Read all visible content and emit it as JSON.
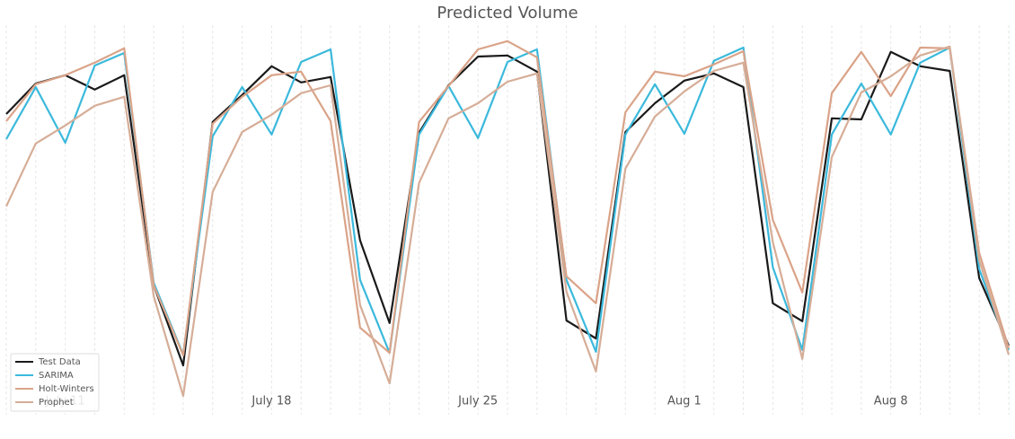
{
  "chart_data": {
    "type": "line",
    "title": "Predicted Volume",
    "categories": [
      null,
      null,
      "July 11",
      null,
      null,
      null,
      null,
      null,
      null,
      "July 18",
      null,
      null,
      null,
      null,
      null,
      null,
      "July 25",
      null,
      null,
      null,
      null,
      null,
      null,
      "Aug 1",
      null,
      null,
      null,
      null,
      null,
      null,
      "Aug 8",
      null,
      null,
      null,
      null
    ],
    "ylim": [
      0,
      110
    ],
    "grid": true,
    "legend": "lower-left",
    "series": [
      {
        "name": "Test Data",
        "color": "#1a1a1a",
        "values": [
          84.5,
          93,
          95.3,
          91.3,
          95.3,
          36.8,
          14.5,
          82.3,
          89.8,
          97.8,
          93.3,
          94.8,
          49.3,
          26.3,
          79.3,
          92.5,
          100.5,
          100.8,
          96.3,
          27,
          22,
          79.5,
          87.5,
          93.8,
          95.8,
          92,
          31.8,
          26.8,
          83.3,
          83,
          101.8,
          97.8,
          96.5,
          38.8,
          20
        ]
      },
      {
        "name": "SARIMA",
        "color": "#3bb9dc",
        "values": [
          77.5,
          92,
          76.5,
          98,
          101.5,
          37.5,
          17.5,
          78.3,
          92,
          78.8,
          99,
          102.5,
          38.3,
          18,
          78.8,
          92.3,
          77.8,
          99,
          102.5,
          38.3,
          18.3,
          78.8,
          92.8,
          79,
          99.3,
          103,
          41.8,
          18.8,
          78.8,
          93,
          78.8,
          98.8,
          103,
          41.3,
          18.8
        ]
      },
      {
        "name": "Holt-Winters",
        "color": "#daa388",
        "values": [
          82.5,
          92.8,
          95.3,
          98.8,
          102.8,
          36.8,
          17.3,
          81.8,
          89.3,
          95.3,
          96.3,
          82.5,
          25,
          18,
          82.3,
          92.3,
          102.5,
          104.8,
          100.3,
          39.3,
          31.8,
          85,
          96.3,
          95,
          98.3,
          102,
          55,
          34.8,
          90.3,
          101.8,
          89.5,
          103,
          102.8,
          45.8,
          19.3
        ]
      },
      {
        "name": "Prophet",
        "color": "#d6ad97",
        "values": [
          58.8,
          76.3,
          81.3,
          86.8,
          89.3,
          33.8,
          6,
          62.8,
          79.5,
          84.3,
          90.3,
          92.5,
          31.3,
          9.5,
          65.3,
          83.3,
          87.5,
          93.5,
          95.8,
          35,
          12.8,
          69.3,
          83.8,
          90.8,
          96.5,
          98.8,
          48.8,
          16.3,
          72.5,
          90.5,
          95,
          100.8,
          103.3,
          43.8,
          17.5
        ]
      }
    ]
  }
}
